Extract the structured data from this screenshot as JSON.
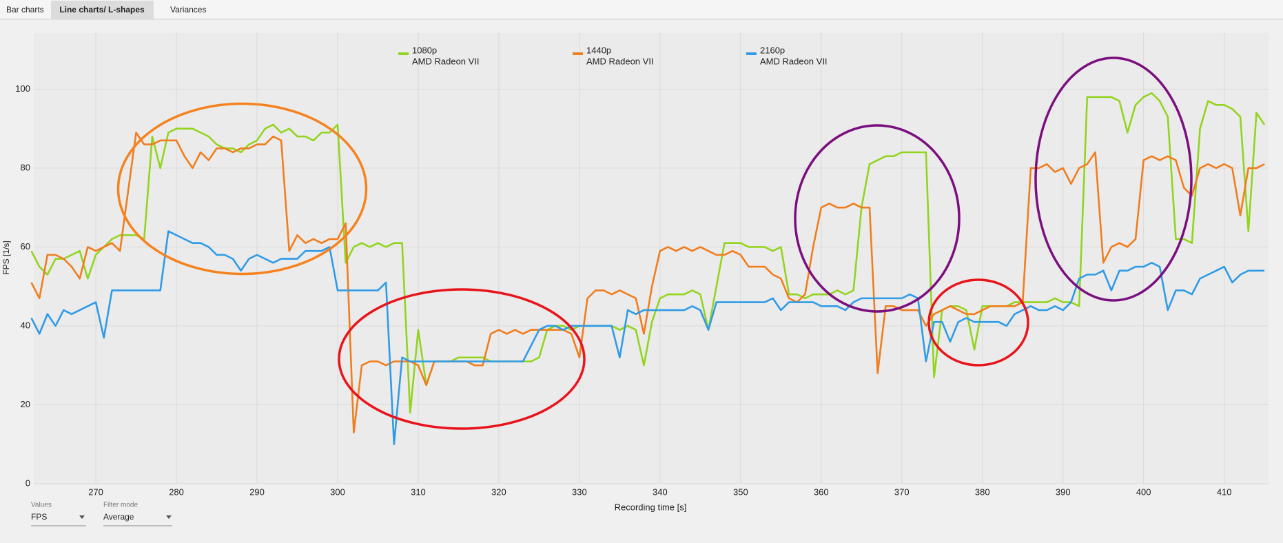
{
  "tabs": [
    "Bar charts",
    "Line charts/ L-shapes",
    "Variances"
  ],
  "controls": [
    {
      "label": "Values",
      "value": "FPS"
    },
    {
      "label": "Filter mode",
      "value": "Average"
    }
  ],
  "chart_data": {
    "type": "line",
    "xlabel": "Recording time [s]",
    "ylabel": "FPS [1/s]",
    "xlim": [
      262.3,
      415.5
    ],
    "xticks": [
      270,
      280,
      290,
      300,
      310,
      320,
      330,
      340,
      350,
      360,
      370,
      380,
      390,
      400,
      410
    ],
    "ylim": [
      0,
      114.3
    ],
    "yticks": [
      0,
      20,
      40,
      60,
      80,
      100
    ],
    "grid": true,
    "x": [
      262,
      263,
      264,
      265,
      266,
      267,
      268,
      269,
      270,
      271,
      272,
      273,
      274,
      275,
      276,
      277,
      278,
      279,
      280,
      281,
      282,
      283,
      284,
      285,
      286,
      287,
      288,
      289,
      290,
      291,
      292,
      293,
      294,
      295,
      296,
      297,
      298,
      299,
      300,
      301,
      302,
      303,
      304,
      305,
      306,
      307,
      308,
      309,
      310,
      311,
      312,
      313,
      314,
      315,
      316,
      317,
      318,
      319,
      320,
      321,
      322,
      323,
      324,
      325,
      326,
      327,
      328,
      329,
      330,
      331,
      332,
      333,
      334,
      335,
      336,
      337,
      338,
      339,
      340,
      341,
      342,
      343,
      344,
      345,
      346,
      347,
      348,
      349,
      350,
      351,
      352,
      353,
      354,
      355,
      356,
      357,
      358,
      359,
      360,
      361,
      362,
      363,
      364,
      365,
      366,
      367,
      368,
      369,
      370,
      371,
      372,
      373,
      374,
      375,
      376,
      377,
      378,
      379,
      380,
      381,
      382,
      383,
      384,
      385,
      386,
      387,
      388,
      389,
      390,
      391,
      392,
      393,
      394,
      395,
      396,
      397,
      398,
      399,
      400,
      401,
      402,
      403,
      404,
      405,
      406,
      407,
      408,
      409,
      410,
      411,
      412,
      413,
      414,
      415
    ],
    "series": [
      {
        "name": "1080p",
        "device": "AMD Radeon VII",
        "color": "#93d41e",
        "values": [
          59,
          55,
          53,
          57,
          57,
          58,
          59,
          52,
          58,
          60,
          62,
          63,
          63,
          63,
          62,
          88,
          80,
          89,
          90,
          90,
          90,
          89,
          88,
          86,
          85,
          85,
          84,
          86,
          87,
          90,
          91,
          89,
          90,
          88,
          88,
          87,
          89,
          89,
          91,
          56,
          60,
          61,
          60,
          61,
          60,
          61,
          61,
          18,
          39,
          25,
          31,
          31,
          31,
          32,
          32,
          32,
          32,
          31,
          31,
          31,
          31,
          31,
          31,
          32,
          39,
          40,
          40,
          39,
          40,
          40,
          40,
          40,
          40,
          39,
          40,
          39,
          30,
          41,
          47,
          48,
          48,
          48,
          49,
          48,
          39,
          50,
          61,
          61,
          61,
          60,
          60,
          60,
          59,
          60,
          48,
          48,
          47,
          48,
          48,
          48,
          49,
          48,
          49,
          70,
          81,
          82,
          83,
          83,
          84,
          84,
          84,
          84,
          27,
          44,
          45,
          45,
          44,
          34,
          45,
          45,
          45,
          45,
          46,
          46,
          46,
          46,
          46,
          47,
          46,
          46,
          45,
          98,
          98,
          98,
          98,
          97,
          89,
          96,
          98,
          99,
          97,
          93,
          62,
          62,
          61,
          90,
          97,
          96,
          96,
          95,
          93,
          64,
          94,
          91
        ]
      },
      {
        "name": "1440p",
        "device": "AMD Radeon VII",
        "color": "#f07d1e",
        "values": [
          51,
          47,
          58,
          58,
          57,
          55,
          52,
          60,
          59,
          60,
          61,
          59,
          74,
          89,
          86,
          86,
          87,
          87,
          87,
          83,
          80,
          84,
          82,
          85,
          85,
          84,
          85,
          85,
          86,
          86,
          88,
          87,
          59,
          63,
          61,
          62,
          61,
          62,
          62,
          66,
          13,
          30,
          31,
          31,
          30,
          31,
          31,
          31,
          30,
          25,
          31,
          31,
          31,
          31,
          31,
          30,
          30,
          38,
          39,
          38,
          39,
          38,
          39,
          39,
          39,
          39,
          39,
          38,
          32,
          47,
          49,
          49,
          48,
          49,
          48,
          47,
          38,
          50,
          59,
          60,
          59,
          60,
          59,
          60,
          59,
          58,
          58,
          59,
          58,
          55,
          55,
          55,
          53,
          52,
          47,
          46,
          48,
          60,
          70,
          71,
          70,
          70,
          71,
          70,
          70,
          28,
          45,
          45,
          44,
          44,
          44,
          40,
          43,
          44,
          45,
          44,
          43,
          43,
          44,
          45,
          45,
          45,
          45,
          46,
          80,
          80,
          81,
          79,
          80,
          76,
          80,
          81,
          84,
          56,
          60,
          61,
          60,
          62,
          82,
          83,
          82,
          83,
          82,
          75,
          73,
          80,
          81,
          80,
          81,
          80,
          68,
          80,
          80,
          81
        ]
      },
      {
        "name": "2160p",
        "device": "AMD Radeon VII",
        "color": "#2f9be6",
        "values": [
          42,
          38,
          43,
          40,
          44,
          43,
          44,
          45,
          46,
          37,
          49,
          49,
          49,
          49,
          49,
          49,
          49,
          64,
          63,
          62,
          61,
          61,
          60,
          58,
          58,
          57,
          54,
          57,
          58,
          57,
          56,
          57,
          57,
          57,
          59,
          59,
          59,
          60,
          49,
          49,
          49,
          49,
          49,
          49,
          51,
          10,
          32,
          31,
          31,
          31,
          31,
          31,
          31,
          31,
          31,
          31,
          31,
          31,
          31,
          31,
          31,
          31,
          35,
          39,
          40,
          40,
          39,
          40,
          40,
          40,
          40,
          40,
          40,
          32,
          44,
          43,
          44,
          44,
          44,
          44,
          44,
          44,
          45,
          44,
          39,
          46,
          46,
          46,
          46,
          46,
          46,
          46,
          47,
          44,
          46,
          46,
          46,
          46,
          45,
          45,
          45,
          44,
          46,
          47,
          47,
          47,
          47,
          47,
          47,
          48,
          47,
          31,
          41,
          41,
          36,
          41,
          42,
          41,
          41,
          41,
          41,
          40,
          43,
          44,
          45,
          44,
          44,
          45,
          44,
          46,
          52,
          53,
          53,
          54,
          49,
          54,
          54,
          55,
          55,
          56,
          55,
          44,
          49,
          49,
          48,
          52,
          53,
          54,
          55,
          51,
          53,
          54,
          54,
          54
        ]
      }
    ]
  }
}
